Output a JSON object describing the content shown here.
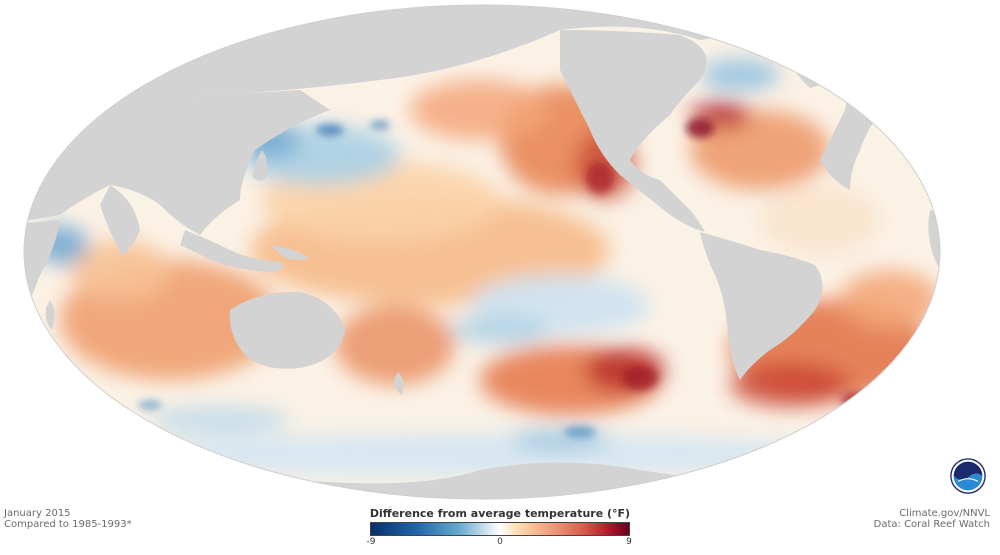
{
  "caption": {
    "date": "January 2015",
    "baseline": "Compared to 1985-1993*"
  },
  "credits": {
    "site": "Climate.gov/NNVL",
    "data_source": "Data: Coral Reef Watch"
  },
  "legend": {
    "title": "Difference from average temperature (°F)",
    "min": "-9",
    "mid": "0",
    "max": "9"
  },
  "logo": {
    "text": "NOAA"
  },
  "colors": {
    "land": "#d3d3d3",
    "ocean_neutral": "#ffffff",
    "warm_light": "#fde2b8",
    "warm": "#f4a582",
    "warm_strong": "#d6604d",
    "hot": "#b2182b",
    "cool_light": "#d1e5f0",
    "cool": "#67a9cf",
    "cold": "#2166ac"
  }
}
